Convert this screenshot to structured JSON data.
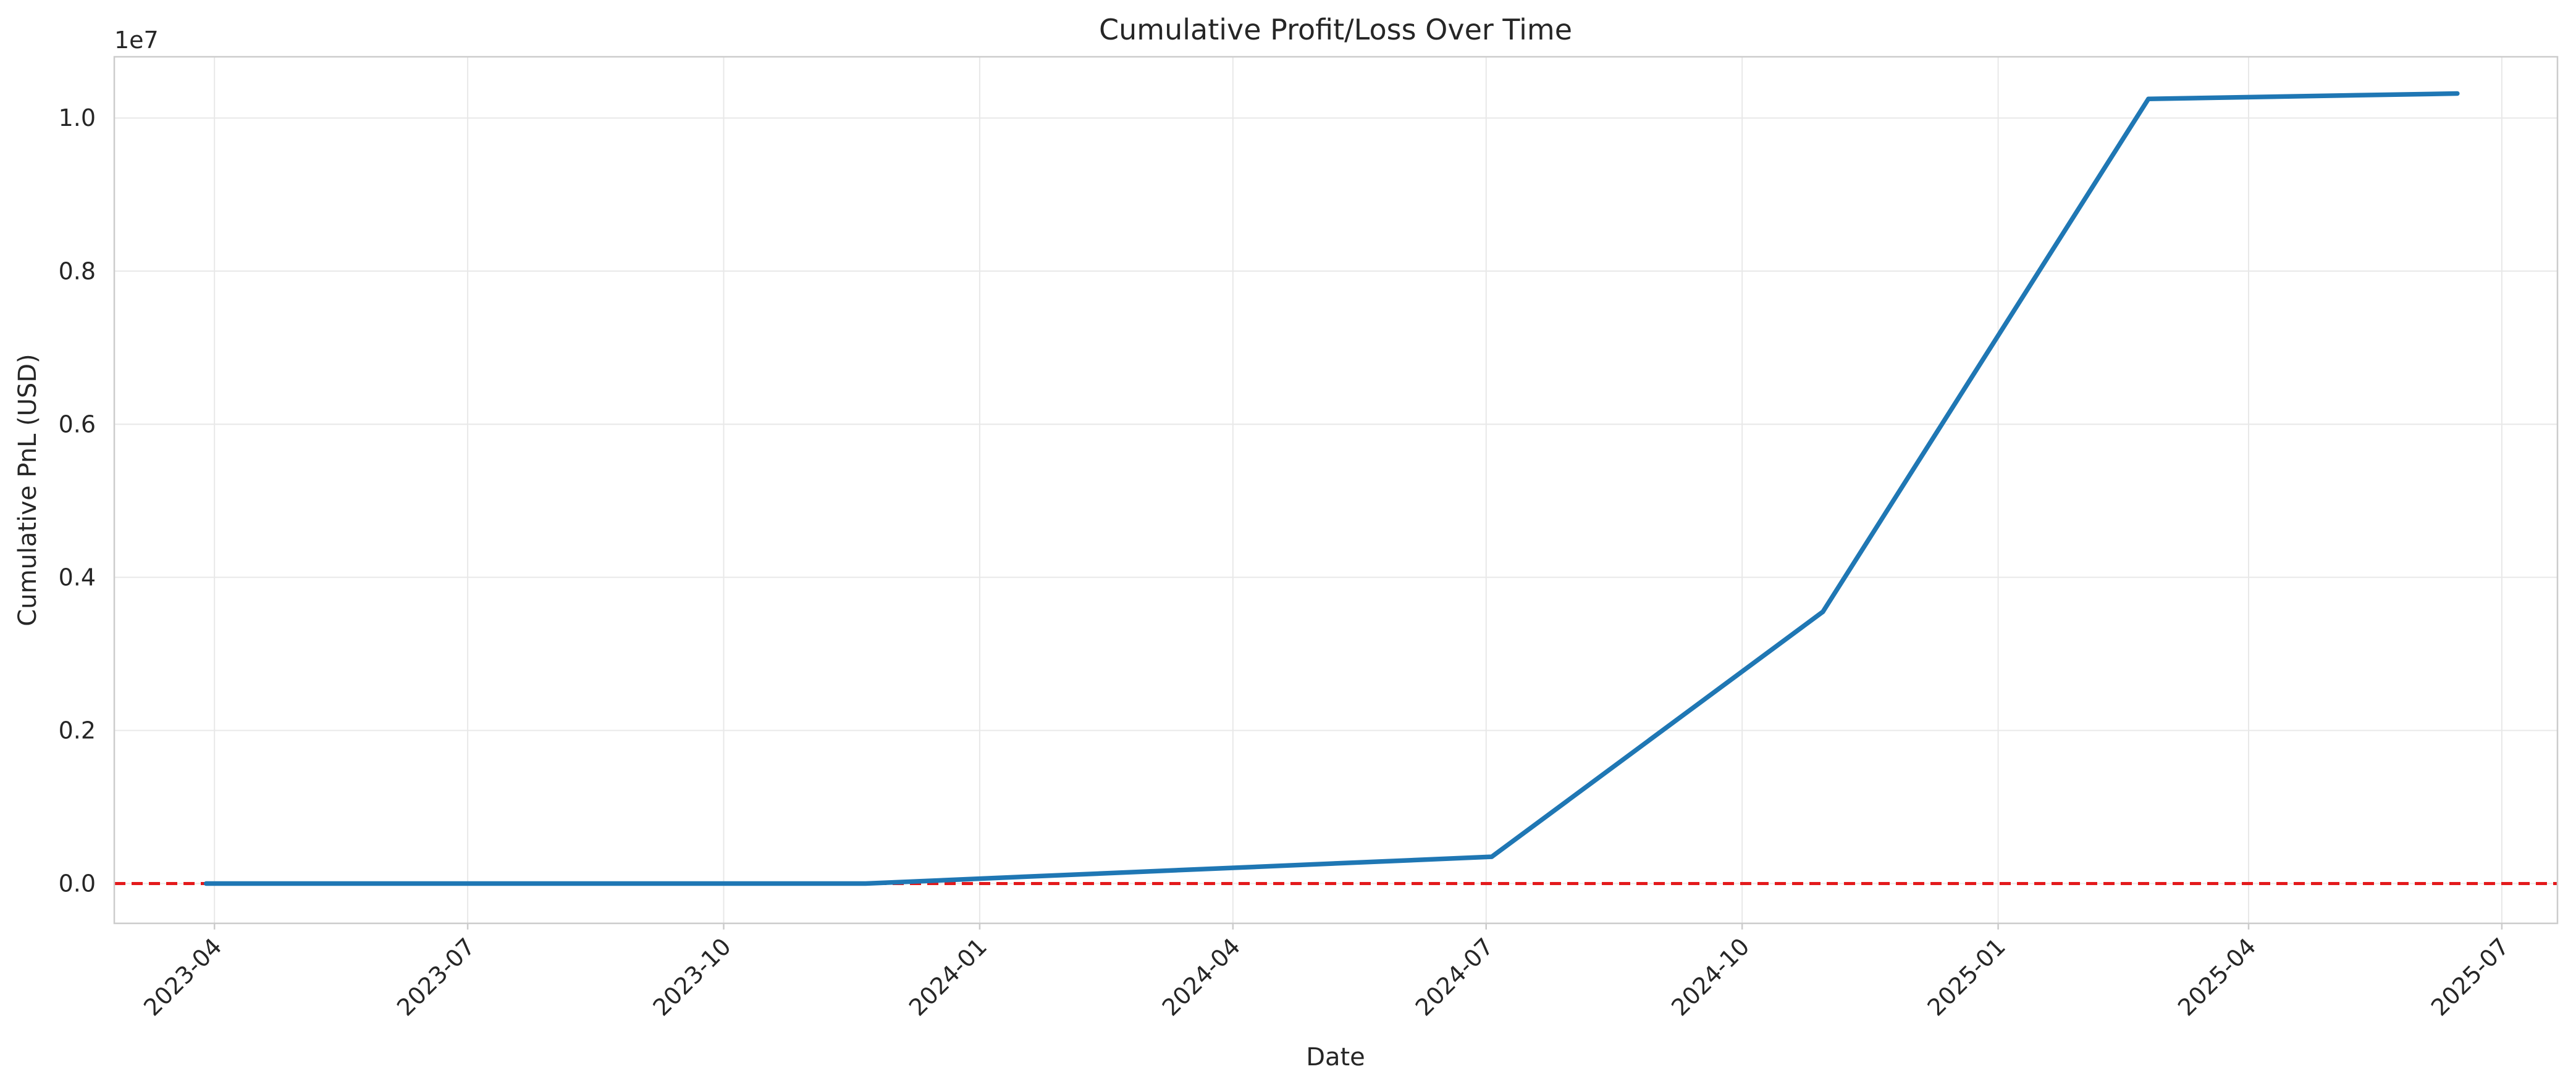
{
  "chart_data": {
    "type": "line",
    "title": "Cumulative Profit/Loss Over Time",
    "xlabel": "Date",
    "ylabel": "Cumulative PnL (USD)",
    "y_offset_label": "1e7",
    "y_scale": 10000000,
    "xlim": [
      "2023-02-24",
      "2025-07-21"
    ],
    "ylim": [
      -0.052,
      1.08
    ],
    "grid": true,
    "x_ticks": [
      "2023-04",
      "2023-07",
      "2023-10",
      "2024-01",
      "2024-04",
      "2024-07",
      "2024-10",
      "2025-01",
      "2025-04",
      "2025-07"
    ],
    "y_ticks": [
      "0.0",
      "0.2",
      "0.4",
      "0.6",
      "0.8",
      "1.0"
    ],
    "series": [
      {
        "color": "#1f77b4",
        "x": [
          "2023-03-29",
          "2023-11-21",
          "2024-07-03",
          "2024-10-30",
          "2025-02-24",
          "2025-06-15"
        ],
        "y": [
          0.0,
          0.0,
          0.035,
          0.355,
          1.025,
          1.032
        ]
      }
    ],
    "reference_line": {
      "y": 0.0,
      "color": "#e31a1c",
      "style": "dashed"
    }
  }
}
